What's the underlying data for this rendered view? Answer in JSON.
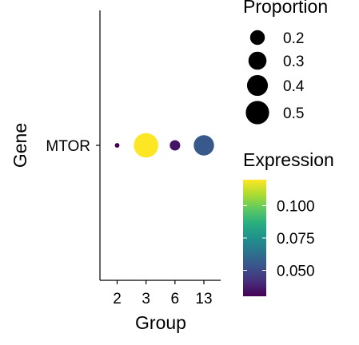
{
  "chart_data": {
    "type": "dot",
    "xlabel": "Group",
    "ylabel": "Gene",
    "categories": [
      "2",
      "3",
      "6",
      "13"
    ],
    "genes": [
      "MTOR"
    ],
    "points": [
      {
        "gene": "MTOR",
        "group": "2",
        "proportion": 0.02,
        "expression": 0.03
      },
      {
        "gene": "MTOR",
        "group": "3",
        "proportion": 0.55,
        "expression": 0.12
      },
      {
        "gene": "MTOR",
        "group": "6",
        "proportion": 0.1,
        "expression": 0.035
      },
      {
        "gene": "MTOR",
        "group": "13",
        "proportion": 0.38,
        "expression": 0.055
      }
    ],
    "size_legend": {
      "title": "Proportion",
      "breaks": [
        0.2,
        0.3,
        0.4,
        0.5
      ],
      "labels": [
        "0.2",
        "0.3",
        "0.4",
        "0.5"
      ]
    },
    "color_legend": {
      "title": "Expression",
      "range": [
        0.03,
        0.12
      ],
      "breaks": [
        0.1,
        0.075,
        0.05
      ],
      "labels": [
        "0.100",
        "0.075",
        "0.050"
      ],
      "colormap": "viridis"
    },
    "grid": false
  }
}
